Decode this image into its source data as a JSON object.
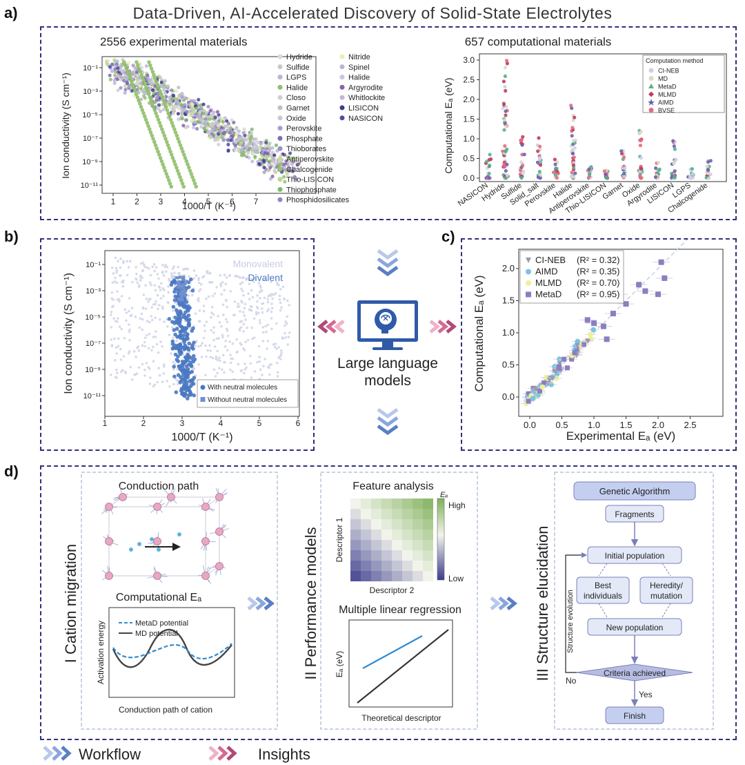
{
  "title": "Data-Driven, AI-Accelerated Discovery of Solid-State Electrolytes",
  "panel_labels": [
    "a)",
    "b)",
    "c)",
    "d)"
  ],
  "colors": {
    "frame": "#2e2f7a",
    "workflow_blue": "#5a7fc4",
    "insight_pink": "#d66a93",
    "divalent": "#4a78c2",
    "monovalent": "#c8cce3"
  },
  "panel_a": {
    "left_title": "2556  experimental  materials",
    "left_ylabel": "Ion conductivity (S cm⁻¹)",
    "left_xlabel": "1000/T (K⁻¹)",
    "left_xticks": [
      "1",
      "2",
      "3",
      "4",
      "5",
      "6",
      "7"
    ],
    "left_yticks": [
      "10⁻¹",
      "10⁻³",
      "10⁻⁵",
      "10⁻⁷",
      "10⁻⁹",
      "10⁻¹¹"
    ],
    "legend": [
      {
        "name": "Hydride",
        "color": "#d9d9d9"
      },
      {
        "name": "Nitride",
        "color": "#e7efb9"
      },
      {
        "name": "Sulfide",
        "color": "#c8c8c8"
      },
      {
        "name": "Spinel",
        "color": "#b9b2d8"
      },
      {
        "name": "LGPS",
        "color": "#b7b7cf"
      },
      {
        "name": "Halide",
        "color": "#c9c4e0"
      },
      {
        "name": "Halide",
        "color": "#8fbf69"
      },
      {
        "name": "Argyrodite",
        "color": "#8e60a8"
      },
      {
        "name": "Closo",
        "color": "#cfcfcf"
      },
      {
        "name": "Whitlockite",
        "color": "#c5b4d8"
      },
      {
        "name": "Garnet",
        "color": "#bfbfbf"
      },
      {
        "name": "LISICON",
        "color": "#3b3a8a"
      },
      {
        "name": "Oxide",
        "color": "#c9c6da"
      },
      {
        "name": "NASICON",
        "color": "#4a4f9c"
      },
      {
        "name": "Perovskite",
        "color": "#a7a0cc"
      },
      {
        "name": "Phosphate",
        "color": "#7e6fb3"
      },
      {
        "name": "Thioborates",
        "color": "#9a8fc6"
      },
      {
        "name": "Antiperovskite",
        "color": "#cfd6a5"
      },
      {
        "name": "Chalcogenide",
        "color": "#9bbf77"
      },
      {
        "name": "Thio-LISICON",
        "color": "#b9d98e"
      },
      {
        "name": "Thiophosphate",
        "color": "#7fb86a"
      },
      {
        "name": "Phosphidosilicates",
        "color": "#8b84c2"
      }
    ],
    "right_title": "657  computational  materials",
    "right_ylabel": "Computational Eₐ (eV)",
    "right_yticks": [
      "0.0",
      "0.5",
      "1.0",
      "1.5",
      "2.0",
      "2.5",
      "3.0"
    ],
    "right_categories": [
      "NASICON",
      "Hydride",
      "Sulfide",
      "Solid_salt",
      "Perovskite",
      "Halide",
      "Antiperovskite",
      "Thio-LISICON",
      "Garnet",
      "Oxide",
      "Argyrodite",
      "LISICON",
      "LGPS",
      "Chalcogenide"
    ],
    "method_legend_title": "Computation method",
    "methods": [
      {
        "name": "CI-NEB",
        "color": "#cdd0e2",
        "shape": "circle"
      },
      {
        "name": "MD",
        "color": "#d9d9c8",
        "shape": "circle"
      },
      {
        "name": "MetaD",
        "color": "#5cae8c",
        "shape": "triangle"
      },
      {
        "name": "MLMD",
        "color": "#c23d5c",
        "shape": "diamond"
      },
      {
        "name": "AIMD",
        "color": "#6a62b0",
        "shape": "star"
      },
      {
        "name": "BVSE",
        "color": "#e56a7e",
        "shape": "circle"
      }
    ]
  },
  "panel_b": {
    "ylabel": "Ion conductivity (S cm⁻¹)",
    "xlabel": "1000/T (K⁻¹)",
    "xticks": [
      "1",
      "2",
      "3",
      "4",
      "5",
      "6"
    ],
    "yticks": [
      "10⁻¹",
      "10⁻³",
      "10⁻⁵",
      "10⁻⁷",
      "10⁻⁹",
      "10⁻¹¹"
    ],
    "label_monovalent": "Monovalent",
    "label_divalent": "Divalent",
    "legend_with": "With neutral molecules",
    "legend_without": "Without neutral molecules"
  },
  "center": {
    "llm_line1": "Large language",
    "llm_line2": "models"
  },
  "panel_c": {
    "ylabel": "Computational Eₐ (eV)",
    "xlabel": "Experimental Eₐ (eV)",
    "ticks": [
      "0.0",
      "0.5",
      "1.0",
      "1.5",
      "2.0",
      "2.5"
    ],
    "legend": [
      {
        "name": "CI-NEB",
        "r2": "(R² = 0.32)",
        "color": "#9a9aae",
        "shape": "triangle"
      },
      {
        "name": "AIMD",
        "r2": "(R² = 0.35)",
        "color": "#7dc2e3",
        "shape": "circle"
      },
      {
        "name": "MLMD",
        "r2": "(R² = 0.70)",
        "color": "#eef19a",
        "shape": "circle"
      },
      {
        "name": "MetaD",
        "r2": "(R² = 0.95)",
        "color": "#8b7fc0",
        "shape": "square"
      }
    ]
  },
  "panel_d": {
    "sec1_title": "I  Cation migration",
    "sec1_conduction": "Conduction path",
    "sec1_comp_ea": "Computational Eₐ",
    "sec1_legend_metad": "MetaD potential",
    "sec1_legend_md": "MD potential",
    "sec1_ylabel": "Activation energy",
    "sec1_xlabel": "Conduction path of cation",
    "sec2_title": "II  Performance models",
    "sec2_feature": "Feature analysis",
    "sec2_ea": "Eₐ",
    "sec2_high": "High",
    "sec2_low": "Low",
    "sec2_desc1": "Descriptor 1",
    "sec2_desc2": "Descriptor 2",
    "sec2_mlr": "Multiple linear regression",
    "sec2_mlr_ylabel": "Eₐ (eV)",
    "sec2_mlr_xlabel": "Theoretical descriptor",
    "sec3_title": "III  Structure elucidation",
    "ga_header": "Genetic Algorithm",
    "ga_fragments": "Fragments",
    "ga_initial": "Initial population",
    "ga_best_1": "Best",
    "ga_best_2": "individuals",
    "ga_hered_1": "Heredity/",
    "ga_hered_2": "mutation",
    "ga_new": "New population",
    "ga_criteria": "Criteria achieved",
    "ga_no": "No",
    "ga_yes": "Yes",
    "ga_finish": "Finish",
    "ga_evolution": "Structure evolution"
  },
  "footer": {
    "workflow": "Workflow",
    "insights": "Insights"
  }
}
